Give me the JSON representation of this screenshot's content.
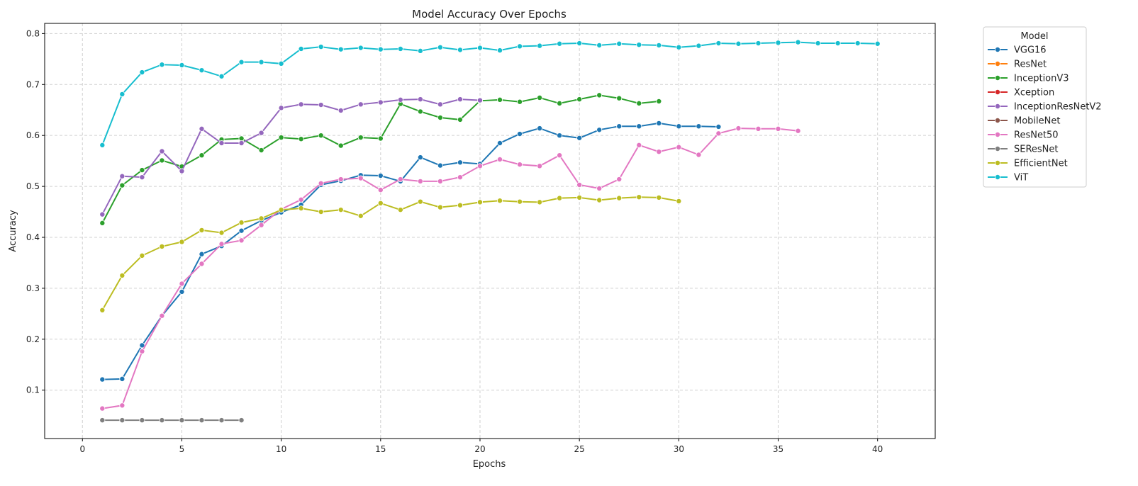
{
  "chart_data": {
    "type": "line",
    "title": "Model Accuracy Over Epochs",
    "xlabel": "Epochs",
    "ylabel": "Accuracy",
    "xlim": [
      -1.9,
      42.9
    ],
    "ylim": [
      0.005,
      0.82
    ],
    "xticks": [
      0,
      5,
      10,
      15,
      20,
      25,
      30,
      35,
      40
    ],
    "yticks": [
      0.1,
      0.2,
      0.3,
      0.4,
      0.5,
      0.6,
      0.7,
      0.8
    ],
    "grid": true,
    "legend": {
      "title": "Model",
      "placement": "outside-top-right"
    },
    "series": [
      {
        "name": "VGG16",
        "color": "#1f77b4",
        "x": [
          1,
          2,
          3,
          4,
          5,
          6,
          7,
          8,
          9,
          10,
          11,
          12,
          13,
          14,
          15,
          16,
          17,
          18,
          19,
          20,
          21,
          22,
          23,
          24,
          25,
          26,
          27,
          28,
          29,
          30,
          31,
          32
        ],
        "values": [
          0.121,
          0.122,
          0.188,
          0.246,
          0.293,
          0.367,
          0.383,
          0.413,
          0.433,
          0.449,
          0.464,
          0.503,
          0.511,
          0.522,
          0.521,
          0.51,
          0.557,
          0.541,
          0.547,
          0.544,
          0.585,
          0.603,
          0.614,
          0.6,
          0.595,
          0.611,
          0.618,
          0.618,
          0.624,
          0.618,
          0.618,
          0.617
        ]
      },
      {
        "name": "ResNet",
        "color": "#ff7f0e",
        "x": [],
        "values": []
      },
      {
        "name": "InceptionV3",
        "color": "#2ca02c",
        "x": [
          1,
          2,
          3,
          4,
          5,
          6,
          7,
          8,
          9,
          10,
          11,
          12,
          13,
          14,
          15,
          16,
          17,
          18,
          19,
          20,
          21,
          22,
          23,
          24,
          25,
          26,
          27,
          28,
          29
        ],
        "values": [
          0.428,
          0.502,
          0.532,
          0.551,
          0.539,
          0.561,
          0.592,
          0.594,
          0.571,
          0.596,
          0.593,
          0.6,
          0.58,
          0.596,
          0.594,
          0.662,
          0.647,
          0.635,
          0.631,
          0.668,
          0.67,
          0.666,
          0.674,
          0.663,
          0.671,
          0.679,
          0.673,
          0.663,
          0.667
        ]
      },
      {
        "name": "Xception",
        "color": "#d62728",
        "x": [],
        "values": []
      },
      {
        "name": "InceptionResNetV2",
        "color": "#9467bd",
        "x": [
          1,
          2,
          3,
          4,
          5,
          6,
          7,
          8,
          9,
          10,
          11,
          12,
          13,
          14,
          15,
          16,
          17,
          18,
          19,
          20
        ],
        "values": [
          0.445,
          0.52,
          0.518,
          0.569,
          0.53,
          0.613,
          0.585,
          0.585,
          0.605,
          0.654,
          0.661,
          0.66,
          0.649,
          0.661,
          0.665,
          0.67,
          0.671,
          0.661,
          0.671,
          0.669
        ]
      },
      {
        "name": "MobileNet",
        "color": "#8c564b",
        "x": [],
        "values": []
      },
      {
        "name": "ResNet50",
        "color": "#e377c2",
        "x": [
          1,
          2,
          3,
          4,
          5,
          6,
          7,
          8,
          9,
          10,
          11,
          12,
          13,
          14,
          15,
          16,
          17,
          18,
          19,
          20,
          21,
          22,
          23,
          24,
          25,
          26,
          27,
          28,
          29,
          30,
          31,
          32,
          33,
          34,
          35,
          36
        ],
        "values": [
          0.064,
          0.07,
          0.176,
          0.246,
          0.309,
          0.348,
          0.387,
          0.394,
          0.424,
          0.455,
          0.474,
          0.506,
          0.514,
          0.516,
          0.493,
          0.514,
          0.51,
          0.51,
          0.518,
          0.54,
          0.553,
          0.543,
          0.54,
          0.561,
          0.503,
          0.496,
          0.514,
          0.581,
          0.568,
          0.577,
          0.562,
          0.604,
          0.614,
          0.613,
          0.613,
          0.609
        ]
      },
      {
        "name": "SEResNet",
        "color": "#7f7f7f",
        "x": [
          1,
          2,
          3,
          4,
          5,
          6,
          7,
          8
        ],
        "values": [
          0.041,
          0.041,
          0.041,
          0.041,
          0.041,
          0.041,
          0.041,
          0.041
        ]
      },
      {
        "name": "EfficientNet",
        "color": "#bcbd22",
        "x": [
          1,
          2,
          3,
          4,
          5,
          6,
          7,
          8,
          9,
          10,
          11,
          12,
          13,
          14,
          15,
          16,
          17,
          18,
          19,
          20,
          21,
          22,
          23,
          24,
          25,
          26,
          27,
          28,
          29,
          30
        ],
        "values": [
          0.257,
          0.325,
          0.364,
          0.382,
          0.391,
          0.414,
          0.409,
          0.429,
          0.437,
          0.454,
          0.457,
          0.45,
          0.454,
          0.442,
          0.467,
          0.454,
          0.47,
          0.459,
          0.463,
          0.469,
          0.472,
          0.47,
          0.469,
          0.477,
          0.478,
          0.473,
          0.477,
          0.479,
          0.478,
          0.471
        ]
      },
      {
        "name": "ViT",
        "color": "#17becf",
        "x": [
          1,
          2,
          3,
          4,
          5,
          6,
          7,
          8,
          9,
          10,
          11,
          12,
          13,
          14,
          15,
          16,
          17,
          18,
          19,
          20,
          21,
          22,
          23,
          24,
          25,
          26,
          27,
          28,
          29,
          30,
          31,
          32,
          33,
          34,
          35,
          36,
          37,
          38,
          39,
          40
        ],
        "values": [
          0.581,
          0.681,
          0.724,
          0.739,
          0.738,
          0.728,
          0.716,
          0.744,
          0.744,
          0.741,
          0.77,
          0.774,
          0.769,
          0.772,
          0.769,
          0.77,
          0.766,
          0.773,
          0.768,
          0.772,
          0.767,
          0.775,
          0.776,
          0.78,
          0.781,
          0.777,
          0.78,
          0.778,
          0.777,
          0.773,
          0.776,
          0.781,
          0.78,
          0.781,
          0.782,
          0.783,
          0.781,
          0.781,
          0.781,
          0.78
        ]
      }
    ]
  }
}
